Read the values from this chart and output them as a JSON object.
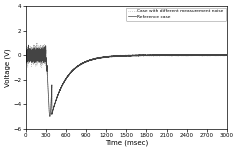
{
  "title": "",
  "xlabel": "Time (msec)",
  "ylabel": "Voltage (V)",
  "xlim": [
    0,
    3000
  ],
  "ylim": [
    -6.0,
    4.0
  ],
  "xticks": [
    0,
    300,
    600,
    900,
    1200,
    1500,
    1800,
    2100,
    2400,
    2700,
    3000
  ],
  "yticks": [
    -6.0,
    -4.0,
    -2.0,
    0.0,
    2.0,
    4.0
  ],
  "legend_labels": [
    "Reference case",
    "Case with different measurement noise"
  ],
  "line1_color": "#444444",
  "line2_color": "#aaaaaa",
  "background_color": "#ffffff"
}
